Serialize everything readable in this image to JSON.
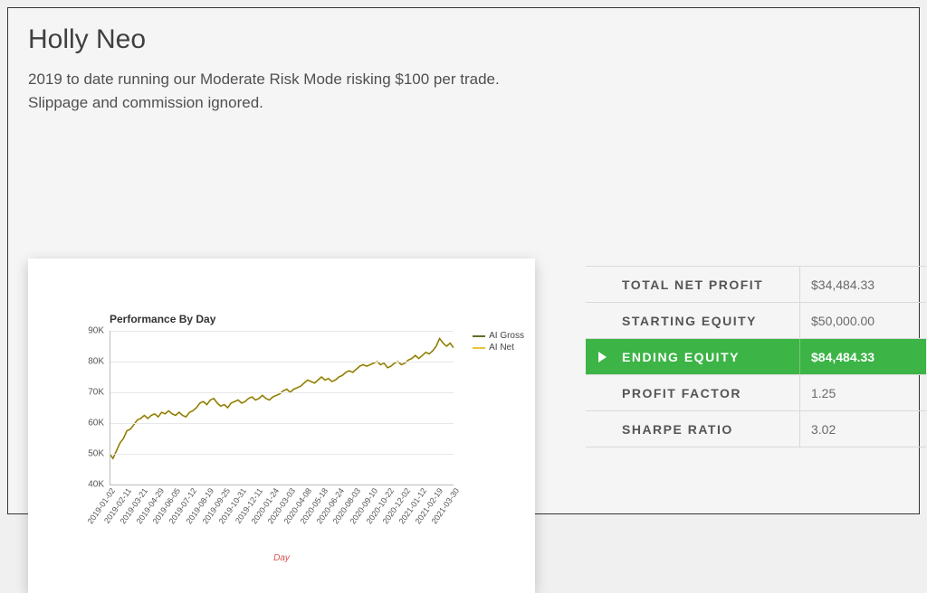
{
  "title": "Holly Neo",
  "subtitle_lines": [
    "2019 to date running our Moderate Risk Mode risking $100 per trade.",
    "Slippage and commission ignored."
  ],
  "stats": {
    "rows": [
      {
        "label": "TOTAL NET PROFIT",
        "value": "$34,484.33",
        "highlight": false
      },
      {
        "label": "STARTING EQUITY",
        "value": "$50,000.00",
        "highlight": false
      },
      {
        "label": "ENDING EQUITY",
        "value": "$84,484.33",
        "highlight": true
      },
      {
        "label": "PROFIT FACTOR",
        "value": "1.25",
        "highlight": false
      },
      {
        "label": "SHARPE RATIO",
        "value": "3.02",
        "highlight": false
      }
    ],
    "highlight_color": "#3cb446",
    "border_color": "#d9d9d9"
  },
  "chart": {
    "type": "line",
    "title": "Performance By Day",
    "x_label": "Day",
    "x_label_color": "#d9534f",
    "ylim": [
      40,
      90
    ],
    "ytick_step": 10,
    "ytick_suffix": "K",
    "grid_color": "#e8e8e8",
    "axis_color": "#bbbbbb",
    "background_color": "#ffffff",
    "title_fontsize": 12,
    "tick_fontsize": 10,
    "x_ticks": [
      "2019-01-02",
      "2019-02-11",
      "2019-03-21",
      "2019-04-29",
      "2019-06-05",
      "2019-07-12",
      "2019-08-19",
      "2019-09-25",
      "2019-10-31",
      "2019-12-11",
      "2020-01-24",
      "2020-03-03",
      "2020-04-08",
      "2020-05-18",
      "2020-06-24",
      "2020-08-03",
      "2020-09-10",
      "2020-10-22",
      "2020-12-02",
      "2021-01-12",
      "2021-02-19",
      "2021-03-30"
    ],
    "legend": [
      {
        "label": "AI Gross",
        "color": "#6a6a28"
      },
      {
        "label": "AI Net",
        "color": "#e8c63a"
      }
    ],
    "series": [
      {
        "name": "AI Net",
        "color": "#e8c63a",
        "line_width": 2,
        "values": [
          50.0,
          48.5,
          51.0,
          53.5,
          55.0,
          57.5,
          58.0,
          59.5,
          61.0,
          61.5,
          62.5,
          61.5,
          62.5,
          63.0,
          62.0,
          63.5,
          63.0,
          64.0,
          63.0,
          62.5,
          63.5,
          62.5,
          62.0,
          63.5,
          64.0,
          65.0,
          66.5,
          67.0,
          66.0,
          67.5,
          68.0,
          66.5,
          65.5,
          66.0,
          65.0,
          66.5,
          67.0,
          67.5,
          66.5,
          67.0,
          68.0,
          68.5,
          67.5,
          68.0,
          69.0,
          68.0,
          67.5,
          68.5,
          69.0,
          69.5,
          70.5,
          71.0,
          70.0,
          71.0,
          71.5,
          72.0,
          73.0,
          74.0,
          73.5,
          73.0,
          74.0,
          75.0,
          74.0,
          74.5,
          73.5,
          74.0,
          75.0,
          75.5,
          76.5,
          77.0,
          76.5,
          77.5,
          78.5,
          79.0,
          78.5,
          79.0,
          79.5,
          80.0,
          79.0,
          79.5,
          78.0,
          78.5,
          79.5,
          80.0,
          79.0,
          79.5,
          80.5,
          81.0,
          82.0,
          81.0,
          82.0,
          83.0,
          82.5,
          83.5,
          85.0,
          87.5,
          86.0,
          85.0,
          86.0,
          84.5
        ]
      },
      {
        "name": "AI Gross",
        "color": "#6a6a28",
        "line_width": 1,
        "values": [
          50.0,
          48.5,
          51.0,
          53.5,
          55.0,
          57.5,
          58.0,
          59.5,
          61.0,
          61.5,
          62.5,
          61.5,
          62.5,
          63.0,
          62.0,
          63.5,
          63.0,
          64.0,
          63.0,
          62.5,
          63.5,
          62.5,
          62.0,
          63.5,
          64.0,
          65.0,
          66.5,
          67.0,
          66.0,
          67.5,
          68.0,
          66.5,
          65.5,
          66.0,
          65.0,
          66.5,
          67.0,
          67.5,
          66.5,
          67.0,
          68.0,
          68.5,
          67.5,
          68.0,
          69.0,
          68.0,
          67.5,
          68.5,
          69.0,
          69.5,
          70.5,
          71.0,
          70.0,
          71.0,
          71.5,
          72.0,
          73.0,
          74.0,
          73.5,
          73.0,
          74.0,
          75.0,
          74.0,
          74.5,
          73.5,
          74.0,
          75.0,
          75.5,
          76.5,
          77.0,
          76.5,
          77.5,
          78.5,
          79.0,
          78.5,
          79.0,
          79.5,
          80.0,
          79.0,
          79.5,
          78.0,
          78.5,
          79.5,
          80.0,
          79.0,
          79.5,
          80.5,
          81.0,
          82.0,
          81.0,
          82.0,
          83.0,
          82.5,
          83.5,
          85.0,
          87.5,
          86.0,
          85.0,
          86.0,
          84.5
        ]
      }
    ]
  }
}
